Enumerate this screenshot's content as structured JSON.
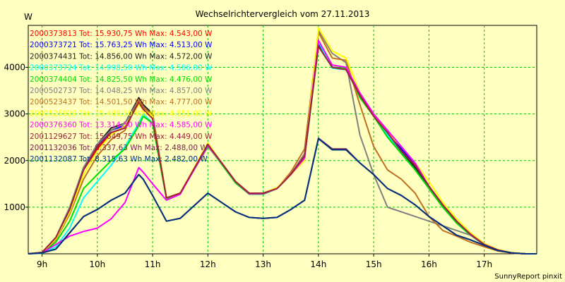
{
  "chart_data": {
    "type": "line",
    "title": "Wechselrichtervergleich vom 27.11.2013",
    "ylabel": "W",
    "xlabel": "",
    "footer": "SunnyReport pinxit",
    "x_ticks": [
      "9h",
      "10h",
      "11h",
      "12h",
      "13h",
      "14h",
      "15h",
      "16h",
      "17h"
    ],
    "y_ticks": [
      1000,
      2000,
      3000,
      4000
    ],
    "xlim": [
      8.75,
      17.95
    ],
    "ylim": [
      0,
      4900
    ],
    "grid": true,
    "legend_position": "top-left",
    "x": [
      8.75,
      9.0,
      9.25,
      9.5,
      9.75,
      10.0,
      10.25,
      10.5,
      10.75,
      10.83,
      11.0,
      11.25,
      11.5,
      12.0,
      12.25,
      12.5,
      12.75,
      13.0,
      13.25,
      13.5,
      13.75,
      14.0,
      14.25,
      14.5,
      14.75,
      15.0,
      15.25,
      15.5,
      15.75,
      16.0,
      16.25,
      16.5,
      16.75,
      17.0,
      17.25,
      17.5,
      17.75,
      17.95
    ],
    "series": [
      {
        "name": "2000373813 Tot: 15.930,75 Wh Max: 4.543,00 W",
        "color": "#ff0000",
        "values": [
          0,
          30,
          350,
          950,
          1800,
          2250,
          2600,
          2700,
          3250,
          3100,
          2900,
          1200,
          1300,
          2350,
          1950,
          1550,
          1300,
          1300,
          1400,
          1700,
          2100,
          4550,
          4000,
          3950,
          3400,
          2950,
          2600,
          2250,
          1900,
          1450,
          1050,
          700,
          420,
          200,
          80,
          20,
          0,
          0
        ]
      },
      {
        "name": "2000373721 Tot: 15.763,25 Wh Max: 4.513,00 W",
        "color": "#0000ff",
        "values": [
          0,
          30,
          330,
          950,
          1820,
          2300,
          2650,
          2750,
          3250,
          3150,
          2950,
          1180,
          1300,
          2330,
          1950,
          1520,
          1280,
          1280,
          1400,
          1720,
          2050,
          4500,
          4000,
          3980,
          3450,
          3000,
          2620,
          2250,
          1900,
          1450,
          1050,
          700,
          420,
          200,
          70,
          20,
          0,
          0
        ]
      },
      {
        "name": "2000374431 Tot: 14.856,00 Wh Max: 4.572,00 W",
        "color": "#202020",
        "values": [
          0,
          30,
          350,
          960,
          1850,
          2350,
          2700,
          2800,
          3350,
          3200,
          3000,
          1200,
          1300,
          2300,
          1950,
          1550,
          1300,
          1280,
          1400,
          1700,
          2100,
          4550,
          4000,
          3950,
          3400,
          3000,
          2550,
          2200,
          1850,
          1400,
          1000,
          680,
          400,
          200,
          70,
          20,
          0,
          0
        ]
      },
      {
        "name": "2000373724 Tot: 14.998,50 Wh Max: 4.586,00 W",
        "color": "#00ffff",
        "values": [
          0,
          10,
          150,
          550,
          1200,
          1550,
          1900,
          2300,
          2800,
          3000,
          2800,
          1180,
          1300,
          2320,
          1950,
          1520,
          1290,
          1280,
          1400,
          1700,
          2050,
          4550,
          3980,
          3950,
          3400,
          2950,
          2550,
          2150,
          1800,
          1400,
          1000,
          660,
          400,
          190,
          70,
          20,
          0,
          0
        ]
      },
      {
        "name": "2000374404 Tot: 14.825,50 Wh Max: 4.476,00 W",
        "color": "#00dd00",
        "values": [
          0,
          20,
          250,
          700,
          1400,
          1700,
          2000,
          2250,
          2750,
          2950,
          2800,
          1180,
          1300,
          2320,
          1920,
          1520,
          1280,
          1280,
          1400,
          1700,
          2050,
          4450,
          4000,
          3980,
          3350,
          2950,
          2500,
          2150,
          1800,
          1400,
          1000,
          660,
          400,
          190,
          70,
          20,
          0,
          0
        ]
      },
      {
        "name": "2000502737 Tot: 14.048,25 Wh Max: 4.857,00 W",
        "color": "#808080",
        "values": [
          0,
          30,
          350,
          1000,
          1850,
          2350,
          2650,
          2800,
          3300,
          3100,
          2900,
          1200,
          1300,
          2300,
          1950,
          1550,
          1300,
          1300,
          1400,
          1700,
          2150,
          4800,
          4300,
          4100,
          2550,
          1700,
          1000,
          900,
          800,
          700,
          600,
          500,
          400,
          200,
          70,
          20,
          0,
          0
        ]
      },
      {
        "name": "2000523437 Tot: 14.501,50 Wh Max: 4.777,00 W",
        "color": "#c07020",
        "values": [
          0,
          30,
          300,
          850,
          1600,
          2100,
          2450,
          2650,
          3300,
          3150,
          2950,
          1200,
          1300,
          2350,
          1950,
          1550,
          1300,
          1300,
          1400,
          1750,
          2250,
          4750,
          4200,
          4150,
          3200,
          2300,
          1800,
          1600,
          1300,
          800,
          500,
          380,
          250,
          150,
          60,
          15,
          0,
          0
        ]
      },
      {
        "name": "2000525929 Tot: 15.489,50 Wh Max: 4.851,00 W",
        "color": "#ffff00",
        "values": [
          0,
          30,
          320,
          900,
          1700,
          2200,
          2550,
          2750,
          3200,
          3100,
          2950,
          1200,
          1300,
          2380,
          1950,
          1550,
          1300,
          1300,
          1420,
          1700,
          2000,
          4850,
          4350,
          4200,
          3450,
          3000,
          2600,
          2300,
          1950,
          1550,
          1100,
          750,
          450,
          220,
          90,
          25,
          0,
          0
        ]
      },
      {
        "name": "2000376360 Tot: 13.314,50 Wh Max: 4.585,00 W",
        "color": "#ff00ff",
        "values": [
          0,
          20,
          200,
          380,
          480,
          550,
          750,
          1100,
          1850,
          1750,
          1500,
          1150,
          1280,
          2330,
          1950,
          1550,
          1290,
          1290,
          1400,
          1700,
          2050,
          4580,
          4050,
          4000,
          3450,
          3000,
          2650,
          2300,
          1950,
          1450,
          1050,
          700,
          420,
          200,
          80,
          20,
          0,
          0
        ]
      },
      {
        "name": "2001129627 Tot: 15.649,75 Wh Max: 4.449,00 W",
        "color": "#a0203c",
        "values": [
          0,
          30,
          350,
          950,
          1800,
          2300,
          2600,
          2700,
          3250,
          3100,
          2900,
          1200,
          1300,
          2350,
          1950,
          1550,
          1300,
          1300,
          1400,
          1700,
          2100,
          4450,
          4000,
          3950,
          3400,
          2950,
          2600,
          2200,
          1900,
          1450,
          1050,
          700,
          420,
          200,
          80,
          20,
          0,
          0
        ]
      },
      {
        "name": "2001132036 Tot: 8.337,63 Wh Max: 2.488,00 W",
        "color": "#7a2050",
        "values": [
          0,
          20,
          100,
          450,
          800,
          950,
          1150,
          1300,
          1700,
          1600,
          1250,
          700,
          760,
          1300,
          1100,
          900,
          780,
          760,
          780,
          950,
          1150,
          2480,
          2250,
          2250,
          1950,
          1700,
          1400,
          1250,
          1050,
          800,
          600,
          400,
          300,
          180,
          70,
          20,
          0,
          0
        ]
      },
      {
        "name": "2001132087 Tot: 8.315,63 Wh Max: 2.482,00 W",
        "color": "#003080",
        "values": [
          0,
          20,
          100,
          450,
          800,
          950,
          1150,
          1300,
          1700,
          1600,
          1250,
          700,
          760,
          1300,
          1100,
          900,
          780,
          760,
          780,
          950,
          1150,
          2470,
          2230,
          2230,
          1950,
          1700,
          1400,
          1250,
          1050,
          800,
          600,
          400,
          300,
          180,
          70,
          20,
          0,
          0
        ]
      }
    ]
  }
}
